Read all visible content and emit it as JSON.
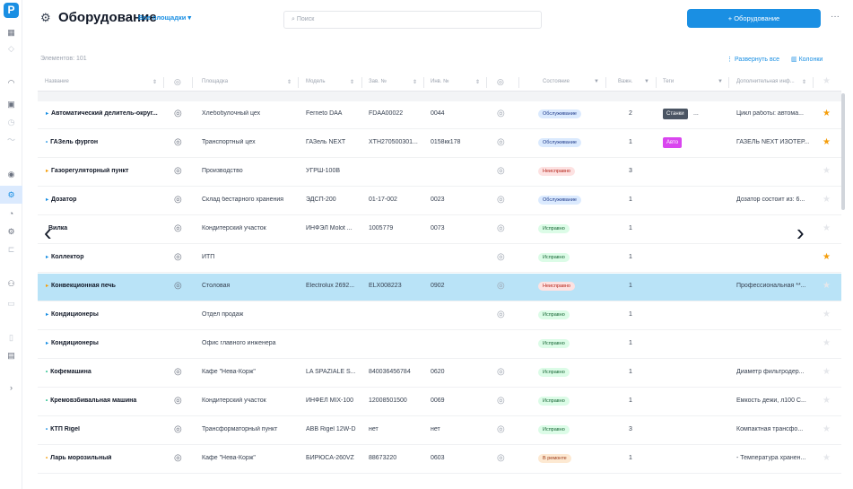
{
  "sidebar": {
    "logo": "P"
  },
  "header": {
    "title": "Оборудование",
    "site_select": "Все площадки ▾",
    "search_placeholder": "Поиск",
    "add_button": "+ Оборудование",
    "more": "···"
  },
  "toolbar": {
    "count": "Элементов: 101",
    "expand_all": "Развернуть все",
    "columns": "Колонки"
  },
  "columns": [
    "Название",
    "Площадка",
    "Модель",
    "Зав. №",
    "Инв. №",
    "Состояние",
    "Важн.",
    "Теги",
    "Дополнительная инф..."
  ],
  "rows": [
    {
      "name": "Автоматический делитель-округ...",
      "location": "Хлебобулочный цех",
      "model": "Fernetо DAA",
      "serial": "FDAA00022",
      "inv": "0044",
      "status": "Обслуживание",
      "status_type": "serv",
      "importance": "2",
      "tag": "Станки",
      "tag_extra": "...",
      "tag_color": "#4b5563",
      "info": "Цикл работы: автома...",
      "starred": true,
      "cam": true,
      "gear": true,
      "mark": "▸",
      "mark_color": "#1a8fe3"
    },
    {
      "name": "ГАЗель фургон",
      "location": "Транспортный цех",
      "model": "ГАЗель NEXT",
      "serial": "XTH270500301...",
      "inv": "0158кк178",
      "status": "Обслуживание",
      "status_type": "serv",
      "importance": "1",
      "tag": "Авто",
      "tag_extra": "",
      "tag_color": "#d946ef",
      "info": "ГАЗЕЛЬ NEXT ИЗОТЕР...",
      "starred": true,
      "cam": true,
      "gear": true,
      "mark": "•",
      "mark_color": "#1a8fe3"
    },
    {
      "name": "Газорегуляторный пункт",
      "location": "Производство",
      "model": "УГРШ-100В",
      "serial": "",
      "inv": "",
      "status": "Неисправно",
      "status_type": "bad",
      "importance": "3",
      "tag": "",
      "tag_extra": "",
      "tag_color": "",
      "info": "",
      "starred": false,
      "cam": true,
      "gear": true,
      "mark": "▸",
      "mark_color": "#f59e0b"
    },
    {
      "name": "Дозатор",
      "location": "Склад бестарного хранения",
      "model": "ЭДСП-200",
      "serial": "01-17-002",
      "inv": "0023",
      "status": "Обслуживание",
      "status_type": "serv",
      "importance": "1",
      "tag": "",
      "tag_extra": "",
      "tag_color": "",
      "info": "Дозатор состоит из: 6...",
      "starred": false,
      "cam": true,
      "gear": true,
      "mark": "▸",
      "mark_color": "#1a8fe3"
    },
    {
      "name": "Вилка",
      "location": "Кондитерский участок",
      "model": "ИНФЭЛ Molot ...",
      "serial": "1005779",
      "inv": "0073",
      "status": "Исправно",
      "status_type": "ok",
      "importance": "1",
      "tag": "",
      "tag_extra": "",
      "tag_color": "",
      "info": "",
      "starred": false,
      "cam": true,
      "gear": true,
      "mark": "",
      "mark_color": "#1a8fe3"
    },
    {
      "name": "Коллектор",
      "location": "ИТП",
      "model": "",
      "serial": "",
      "inv": "",
      "status": "Исправно",
      "status_type": "ok",
      "importance": "1",
      "tag": "",
      "tag_extra": "",
      "tag_color": "",
      "info": "",
      "starred": true,
      "cam": true,
      "gear": true,
      "mark": "▸",
      "mark_color": "#1a8fe3"
    },
    {
      "name": "Конвекционная печь",
      "location": "Столовая",
      "model": "Electrolux 2692...",
      "serial": "ELX008223",
      "inv": "0902",
      "status": "Неисправно",
      "status_type": "bad",
      "importance": "1",
      "tag": "",
      "tag_extra": "",
      "tag_color": "",
      "info": "Профессиональная **...",
      "starred": false,
      "cam": true,
      "gear": true,
      "mark": "▸",
      "mark_color": "#f59e0b",
      "highlight": true
    },
    {
      "name": "Кондиционеры",
      "location": "Отдел продаж",
      "model": "",
      "serial": "",
      "inv": "",
      "status": "Исправно",
      "status_type": "ok",
      "importance": "1",
      "tag": "",
      "tag_extra": "",
      "tag_color": "",
      "info": "",
      "starred": false,
      "cam": false,
      "gear": true,
      "mark": "▸",
      "mark_color": "#1a8fe3"
    },
    {
      "name": "Кондиционеры",
      "location": "Офис главного инженера",
      "model": "",
      "serial": "",
      "inv": "",
      "status": "Исправно",
      "status_type": "ok",
      "importance": "1",
      "tag": "",
      "tag_extra": "",
      "tag_color": "",
      "info": "",
      "starred": false,
      "cam": false,
      "gear": false,
      "mark": "▸",
      "mark_color": "#1a8fe3"
    },
    {
      "name": "Кофемашина",
      "location": "Кафе \"Нева-Корж\"",
      "model": "LA SPAZIALE S...",
      "serial": "840036456784",
      "inv": "0620",
      "status": "Исправно",
      "status_type": "ok",
      "importance": "1",
      "tag": "",
      "tag_extra": "",
      "tag_color": "",
      "info": "Диаметр фильтродер...",
      "starred": false,
      "cam": true,
      "gear": true,
      "mark": "•",
      "mark_color": "#10b981"
    },
    {
      "name": "Кремовзбивальная машина",
      "location": "Кондитерский участок",
      "model": "ИНФЕЛ MIX-100",
      "serial": "12008501500",
      "inv": "0069",
      "status": "Исправно",
      "status_type": "ok",
      "importance": "1",
      "tag": "",
      "tag_extra": "",
      "tag_color": "",
      "info": "Емкость дежи, л100 С...",
      "starred": false,
      "cam": true,
      "gear": true,
      "mark": "•",
      "mark_color": "#10b981"
    },
    {
      "name": "КТП Rigel",
      "location": "Трансформаторный пункт",
      "model": "ABB Rigel 12W-D",
      "serial": "нет",
      "inv": "нет",
      "status": "Исправно",
      "status_type": "ok",
      "importance": "3",
      "tag": "",
      "tag_extra": "",
      "tag_color": "",
      "info": "Компактная трансфо...",
      "starred": false,
      "cam": true,
      "gear": true,
      "mark": "•",
      "mark_color": "#1a8fe3"
    },
    {
      "name": "Ларь морозильный",
      "location": "Кафе \"Нева-Корж\"",
      "model": "БИРЮСА-260VZ",
      "serial": "88673220",
      "inv": "0603",
      "status": "В ремонте",
      "status_type": "rep",
      "importance": "1",
      "tag": "",
      "tag_extra": "",
      "tag_color": "",
      "info": "- Температура хранен...",
      "starred": false,
      "cam": true,
      "gear": true,
      "mark": "•",
      "mark_color": "#f59e0b"
    }
  ],
  "icons": {
    "camera": "◎",
    "gear": "◎",
    "star": "★",
    "expand": "⋮",
    "columns": "▥",
    "arrow_left": "‹",
    "arrow_right": "›",
    "equipment": "⚙"
  }
}
